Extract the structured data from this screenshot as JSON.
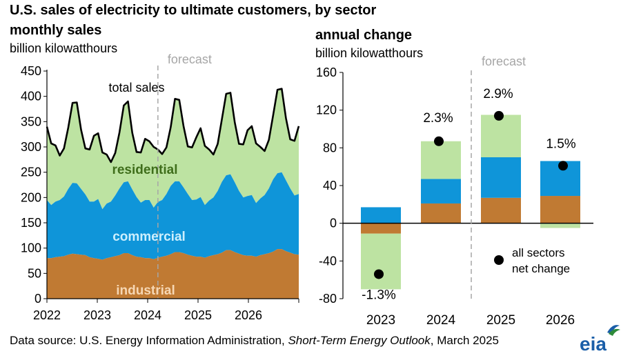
{
  "title": "U.S. sales of electricity to ultimate customers, by sector",
  "source": {
    "prefix": "Data source: U.S. Energy Information Administration, ",
    "publication": "Short-Term Energy Outlook",
    "suffix": ", March 2025"
  },
  "logo_text": "eia",
  "colors": {
    "industrial": "#c07a33",
    "commercial": "#0f95d9",
    "residential": "#bde3a2",
    "total": "#000000",
    "residential_label": "#3f6e1b",
    "commercial_label": "#cdeffd",
    "industrial_label": "#f6d7b4",
    "forecast_line": "#a6a6a6",
    "forecast_text": "#a6a6a6"
  },
  "chart_data": [
    {
      "type": "area",
      "title": "monthly sales",
      "ylabel": "billion kilowatthours",
      "ylim": [
        0,
        450
      ],
      "yticks": [
        "0",
        "50",
        "100",
        "150",
        "200",
        "250",
        "300",
        "350",
        "400",
        "450"
      ],
      "xticks": [
        "2022",
        "2023",
        "2024",
        "2025",
        "2026"
      ],
      "forecast_label": "forecast",
      "forecast_start_month_index": 26,
      "grid": false,
      "stack_order": [
        "industrial",
        "commercial",
        "residential"
      ],
      "series_labels": {
        "residential": "residential",
        "commercial": "commercial",
        "industrial": "industrial",
        "total": "total sales"
      },
      "industrial": [
        80,
        80,
        82,
        83,
        84,
        87,
        89,
        88,
        87,
        86,
        82,
        80,
        79,
        77,
        80,
        82,
        84,
        86,
        90,
        90,
        86,
        83,
        82,
        80,
        80,
        78,
        81,
        83,
        85,
        88,
        92,
        92,
        90,
        87,
        85,
        83,
        83,
        81,
        84,
        86,
        88,
        91,
        96,
        96,
        92,
        89,
        86,
        85,
        85,
        83,
        86,
        88,
        90,
        93,
        98,
        98,
        94,
        91,
        88,
        87
      ],
      "commercial": [
        115,
        105,
        110,
        112,
        118,
        130,
        140,
        140,
        130,
        120,
        110,
        112,
        118,
        100,
        108,
        110,
        120,
        132,
        140,
        142,
        130,
        118,
        108,
        115,
        115,
        102,
        110,
        112,
        122,
        135,
        140,
        140,
        130,
        120,
        110,
        113,
        118,
        104,
        110,
        114,
        125,
        140,
        148,
        150,
        138,
        124,
        114,
        118,
        120,
        106,
        112,
        117,
        128,
        143,
        150,
        152,
        140,
        127,
        116,
        120
      ],
      "residential": [
        145,
        122,
        111,
        88,
        95,
        121,
        158,
        160,
        117,
        91,
        103,
        130,
        130,
        112,
        97,
        78,
        84,
        111,
        152,
        158,
        112,
        89,
        99,
        121,
        116,
        120,
        104,
        91,
        92,
        116,
        163,
        161,
        121,
        94,
        104,
        123,
        136,
        117,
        101,
        85,
        93,
        124,
        161,
        161,
        119,
        93,
        105,
        130,
        136,
        118,
        102,
        87,
        96,
        127,
        165,
        165,
        123,
        97,
        108,
        134
      ],
      "total": [
        340,
        307,
        303,
        283,
        297,
        338,
        387,
        388,
        334,
        297,
        295,
        322,
        327,
        289,
        285,
        270,
        288,
        329,
        382,
        390,
        328,
        290,
        289,
        316,
        311,
        300,
        295,
        286,
        299,
        339,
        395,
        393,
        341,
        301,
        299,
        319,
        337,
        302,
        295,
        285,
        306,
        355,
        405,
        407,
        349,
        306,
        305,
        333,
        341,
        307,
        300,
        292,
        314,
        363,
        413,
        415,
        357,
        315,
        312,
        341
      ]
    },
    {
      "type": "bar",
      "title": "annual change",
      "ylabel": "billion kilowatthours",
      "ylim": [
        -80,
        160
      ],
      "yticks": [
        "-80",
        "-40",
        "0",
        "40",
        "80",
        "120",
        "160"
      ],
      "categories": [
        "2023",
        "2024",
        "2025",
        "2026"
      ],
      "forecast_label": "forecast",
      "forecast_after_category_index": 1,
      "series": [
        {
          "name": "industrial",
          "values": [
            -11,
            21,
            27,
            29
          ]
        },
        {
          "name": "commercial",
          "values": [
            17,
            26,
            43,
            37
          ]
        },
        {
          "name": "residential",
          "values": [
            -59,
            40,
            45,
            -5
          ]
        }
      ],
      "net_change": [
        -54,
        87,
        114,
        61
      ],
      "net_change_labels": [
        "-1.3%",
        "2.3%",
        "2.9%",
        "1.5%"
      ],
      "legend": "all sectors\nnet change",
      "legend_line1": "all sectors",
      "legend_line2": "net change"
    }
  ]
}
